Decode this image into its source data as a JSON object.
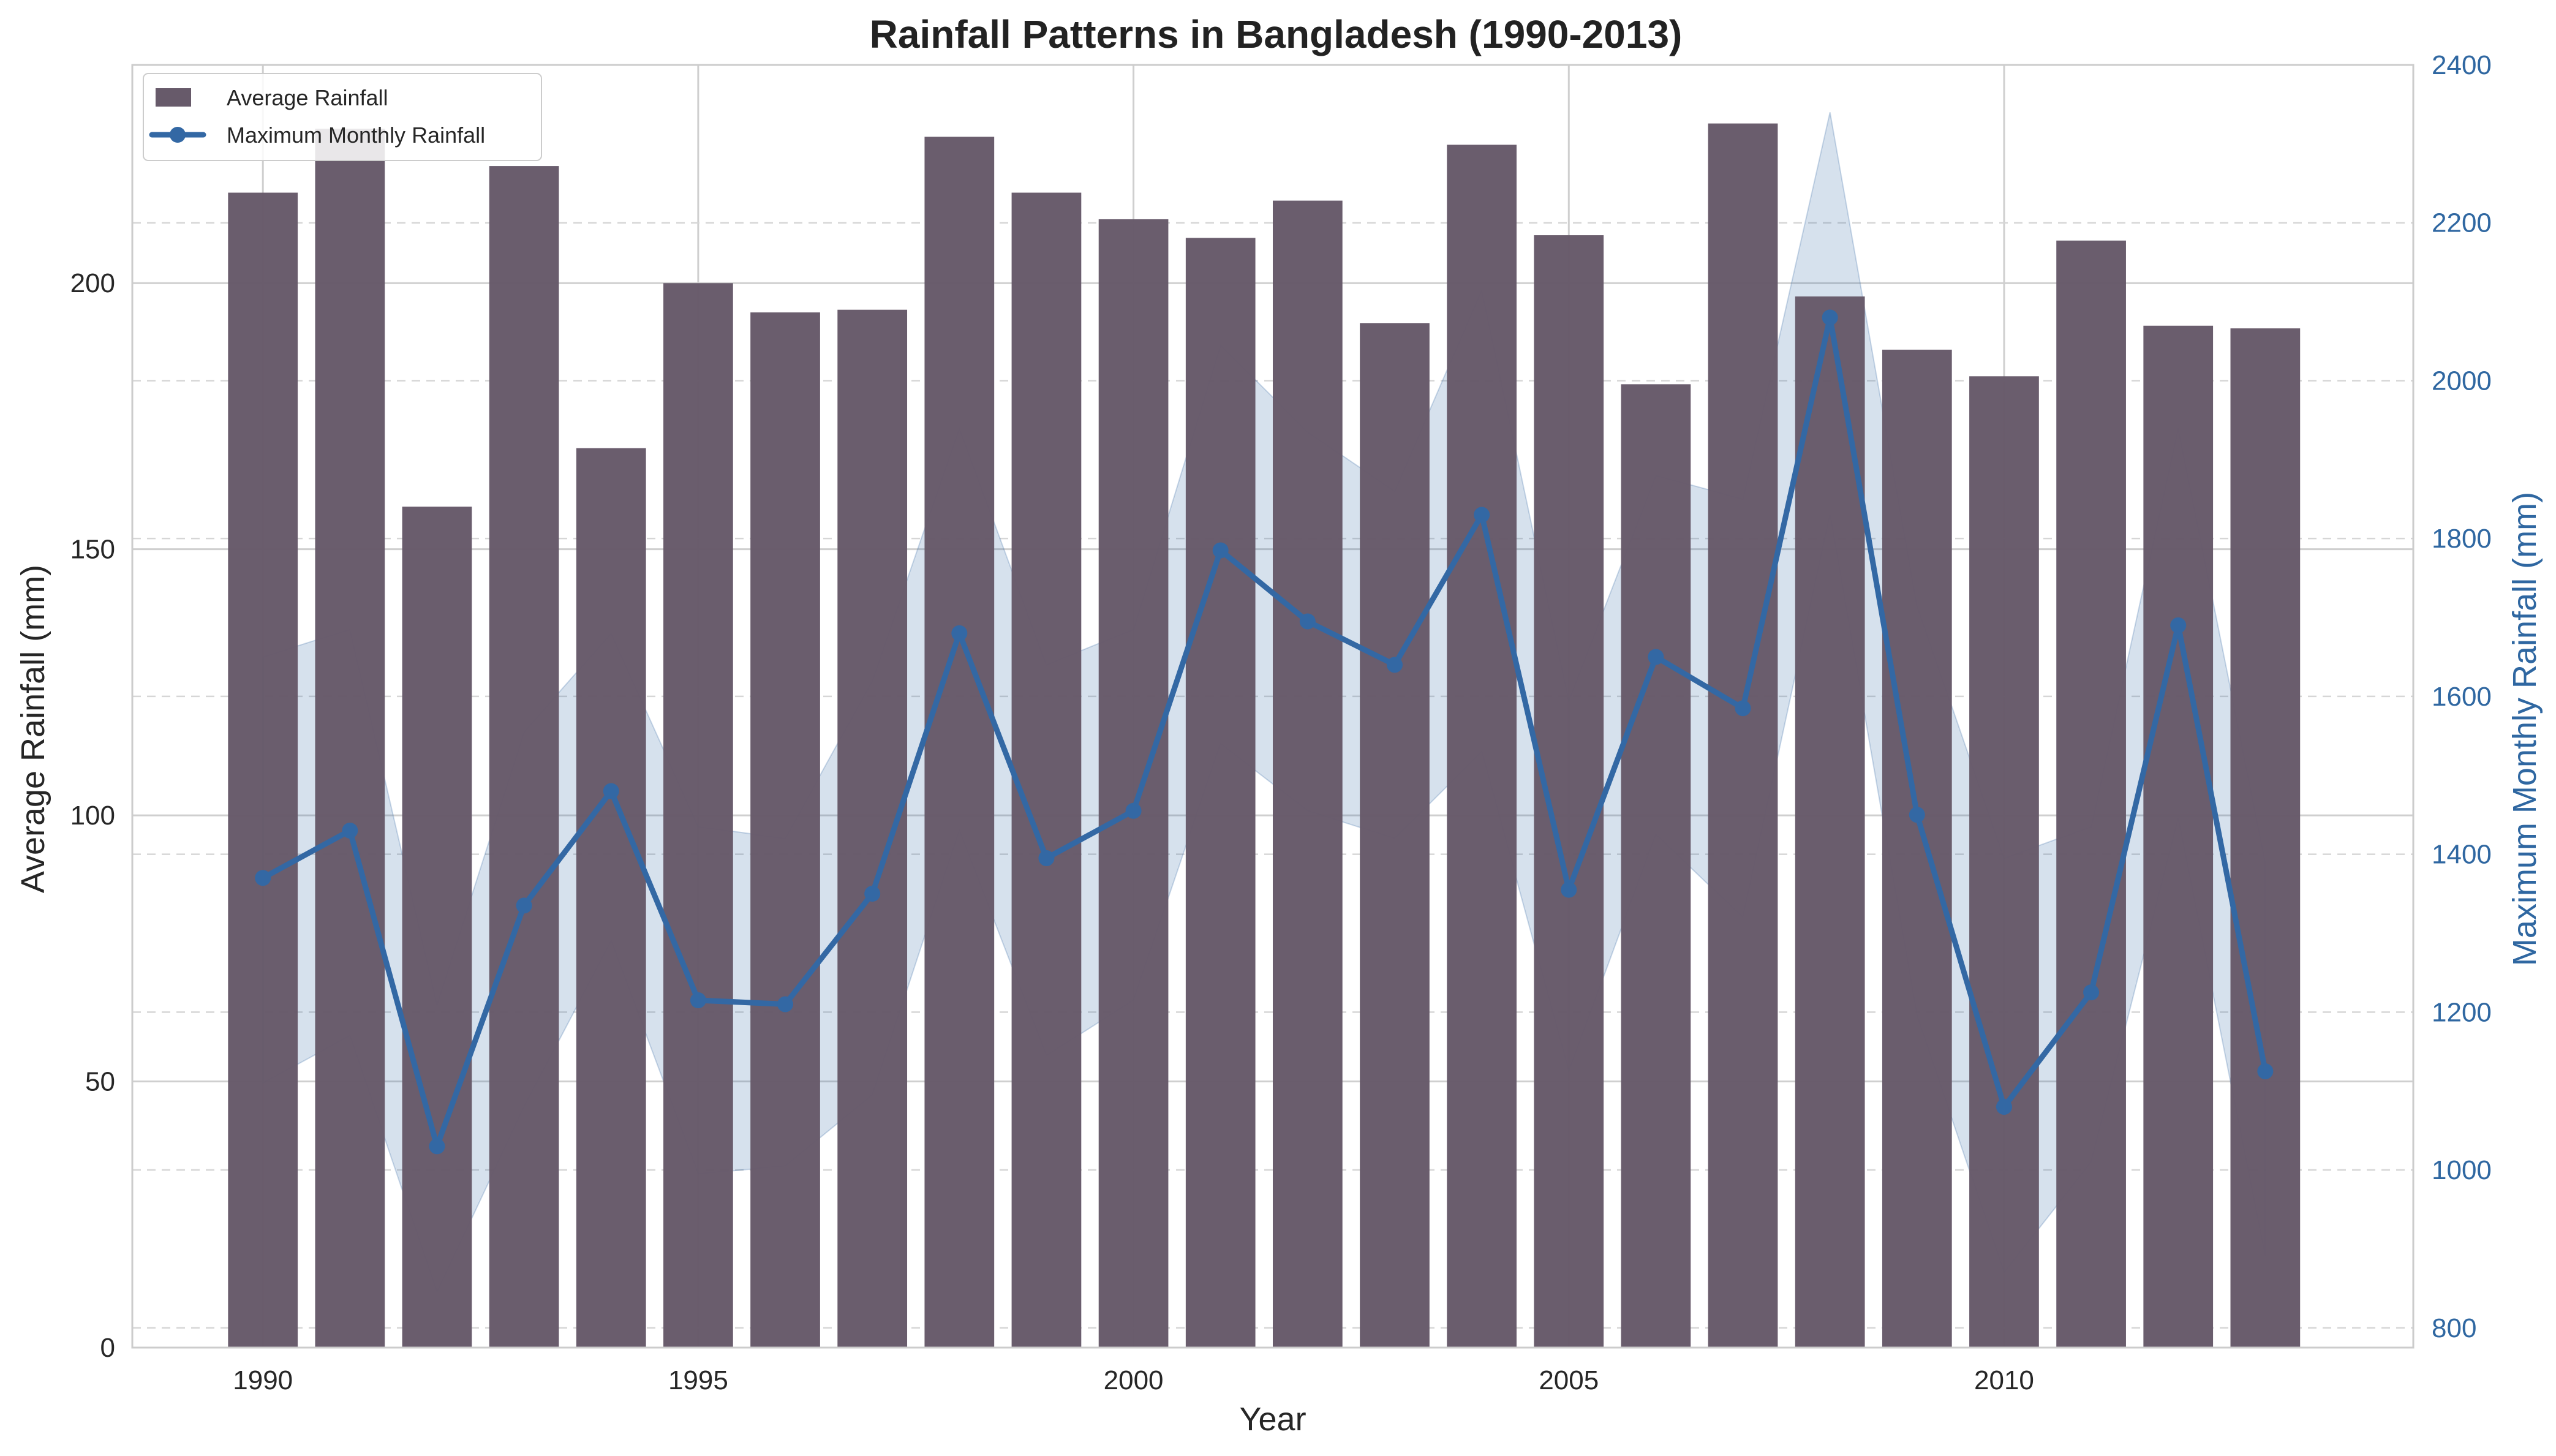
{
  "chart_data": {
    "type": "bar",
    "title": "Rainfall Patterns in Bangladesh (1990-2013)",
    "xlabel": "Year",
    "ylabel": "Average Rainfall (mm)",
    "y2label": "Maximum Monthly Rainfall (mm)",
    "xlim": [
      1988.5,
      2014.7
    ],
    "ylim": [
      0,
      241
    ],
    "y2lim": [
      775,
      2400
    ],
    "x_ticks": [
      1990,
      1995,
      2000,
      2005,
      2010
    ],
    "y_ticks": [
      0,
      50,
      100,
      150,
      200
    ],
    "y2_ticks": [
      800,
      1000,
      1200,
      1400,
      1600,
      1800,
      2000,
      2200,
      2400
    ],
    "grid": true,
    "legend_position": "upper left",
    "x": [
      1990,
      1991,
      1992,
      1993,
      1994,
      1995,
      1996,
      1997,
      1998,
      1999,
      2000,
      2001,
      2002,
      2003,
      2004,
      2005,
      2006,
      2007,
      2008,
      2009,
      2010,
      2011,
      2012,
      2013
    ],
    "series": [
      {
        "name": "Average Rainfall",
        "type": "bar",
        "axis": "left",
        "color": "#675a6a",
        "values": [
          217,
          229,
          158,
          222,
          169,
          200,
          194.5,
          195,
          227.5,
          217,
          212,
          208.5,
          215.5,
          192.5,
          226,
          209,
          181,
          230,
          197.5,
          187.5,
          182.5,
          208,
          192,
          191.5
        ]
      },
      {
        "name": "Maximum Monthly Rainfall",
        "type": "line",
        "axis": "right",
        "color": "#3368a4",
        "values": [
          1370,
          1430,
          1030,
          1335,
          1480,
          1215,
          1210,
          1350,
          1680,
          1395,
          1455,
          1785,
          1695,
          1640,
          1830,
          1355,
          1650,
          1585,
          2080,
          1450,
          1080,
          1225,
          1690,
          1125
        ],
        "band_upper": [
          1650,
          1685,
          1210,
          1555,
          1680,
          1435,
          1420,
          1620,
          1940,
          1640,
          1685,
          2045,
          1935,
          1860,
          2115,
          1595,
          1880,
          1850,
          2340,
          1715,
          1395,
          1435,
          1940,
          1390
        ],
        "band_lower": [
          1110,
          1170,
          845,
          1080,
          1290,
          995,
          1005,
          1095,
          1430,
          1145,
          1215,
          1540,
          1455,
          1420,
          1530,
          1125,
          1425,
          1320,
          1830,
          1195,
          870,
          1010,
          1445,
          890
        ]
      }
    ]
  }
}
